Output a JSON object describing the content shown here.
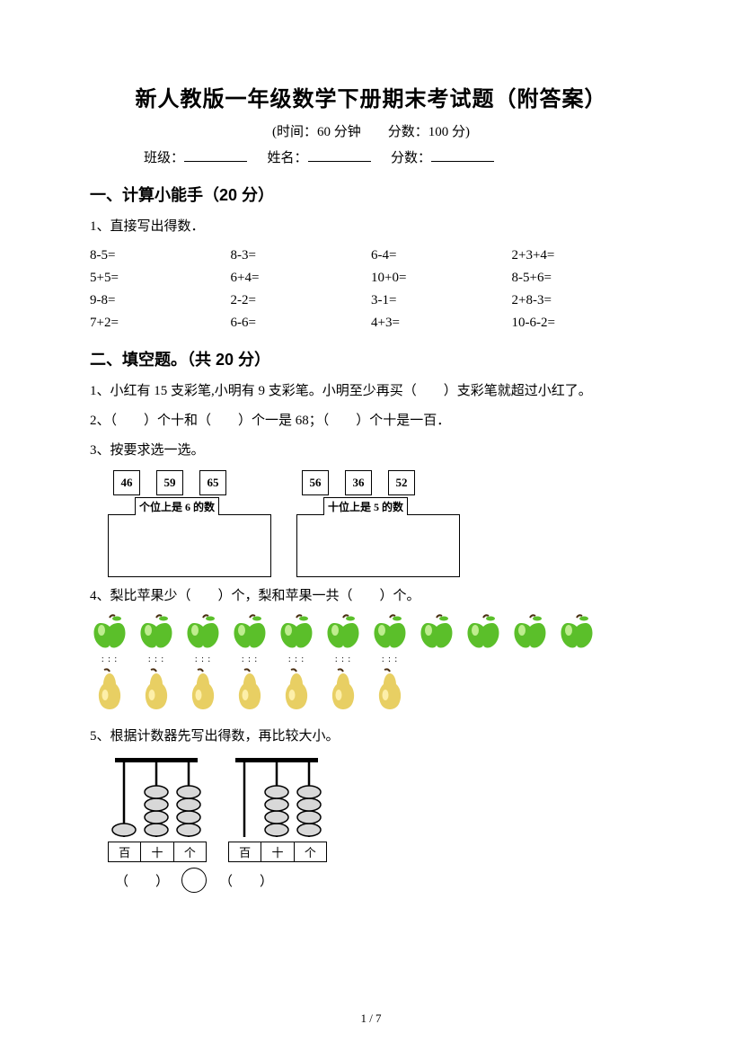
{
  "title": "新人教版一年级数学下册期末考试题（附答案）",
  "subtitle": "(时间：60 分钟　　分数：100 分)",
  "meta": {
    "class_label": "班级：",
    "name_label": "姓名：",
    "score_label": "分数："
  },
  "section1": {
    "head": "一、计算小能手（20 分）",
    "q1_label": "1、直接写出得数．",
    "rows": [
      [
        "8-5=",
        "8-3=",
        "6-4=",
        "2+3+4="
      ],
      [
        "5+5=",
        "6+4=",
        "10+0=",
        "8-5+6="
      ],
      [
        "9-8=",
        "2-2=",
        "3-1=",
        "2+8-3="
      ],
      [
        "7+2=",
        "6-6=",
        "4+3=",
        "10-6-2="
      ]
    ]
  },
  "section2": {
    "head": "二、填空题。（共 20 分）",
    "q1": "1、小红有 15 支彩笔,小明有 9 支彩笔。小明至少再买（　　）支彩笔就超过小红了。",
    "q2": "2、（　　）个十和（　　）个一是 68；（　　）个十是一百．",
    "q3_label": "3、按要求选一选。",
    "q3": {
      "groupA": {
        "cards": [
          "46",
          "59",
          "65"
        ],
        "bin_label": "个位上是 6 的数"
      },
      "groupB": {
        "cards": [
          "56",
          "36",
          "52"
        ],
        "bin_label": "十位上是 5 的数"
      }
    },
    "q4": "4、梨比苹果少（　　）个，梨和苹果一共（　　）个。",
    "q4_data": {
      "apples": 11,
      "pears": 7,
      "apple_color": "#5bbf2a",
      "apple_highlight": "#c9f29a",
      "apple_stem": "#4a2f12",
      "pear_color": "#e8cf63",
      "pear_highlight": "#fff2b0",
      "pear_stem": "#4a2f12"
    },
    "q5_label": "5、根据计数器先写出得数，再比较大小。",
    "q5": {
      "abacusA": {
        "beads": [
          1,
          4,
          4
        ],
        "labels": [
          "百",
          "十",
          "个"
        ]
      },
      "abacusB": {
        "beads": [
          0,
          4,
          4
        ],
        "labels": [
          "百",
          "十",
          "个"
        ]
      },
      "bead_fill": "#d8d8d8",
      "bead_stroke": "#000000",
      "rod_color": "#000000"
    }
  },
  "page_number": "1 / 7"
}
